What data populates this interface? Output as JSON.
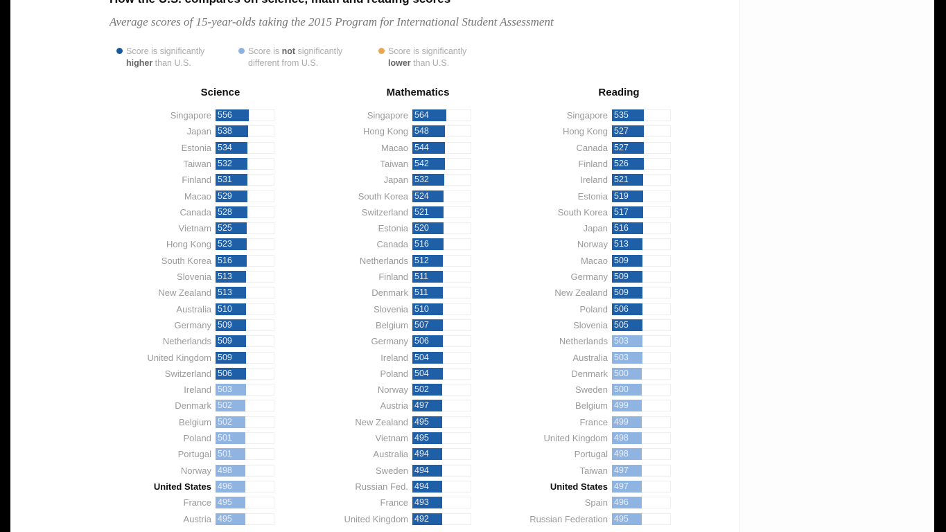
{
  "title": "How the U.S. compares on science, math and reading scores",
  "subtitle": "Average scores of 15-year-olds taking the 2015 Program for International Student Assessment",
  "legend": [
    {
      "line1_a": "Score is significantly",
      "bold": "higher",
      "line2_b": " than U.S.",
      "color": "#1a5a9c"
    },
    {
      "line1_a": "Score is ",
      "bold": "not",
      "line1_b": " significantly",
      "line2": "different from U.S.",
      "color": "#8db2e0"
    },
    {
      "line1_a": "Score is significantly",
      "bold": "lower",
      "line2_b": " than U.S.",
      "color": "#e8a552"
    }
  ],
  "colors": {
    "higher": "#1f5fa8",
    "not_different": "#8fb4e2",
    "lower": "#e8a552"
  },
  "chart_data": [
    {
      "type": "bar",
      "title": "Science",
      "rows": [
        [
          "Singapore",
          556,
          "higher"
        ],
        [
          "Japan",
          538,
          "higher"
        ],
        [
          "Estonia",
          534,
          "higher"
        ],
        [
          "Taiwan",
          532,
          "higher"
        ],
        [
          "Finland",
          531,
          "higher"
        ],
        [
          "Macao",
          529,
          "higher"
        ],
        [
          "Canada",
          528,
          "higher"
        ],
        [
          "Vietnam",
          525,
          "higher"
        ],
        [
          "Hong Kong",
          523,
          "higher"
        ],
        [
          "South Korea",
          516,
          "higher"
        ],
        [
          "Slovenia",
          513,
          "higher"
        ],
        [
          "New Zealand",
          513,
          "higher"
        ],
        [
          "Australia",
          510,
          "higher"
        ],
        [
          "Germany",
          509,
          "higher"
        ],
        [
          "Netherlands",
          509,
          "higher"
        ],
        [
          "United Kingdom",
          509,
          "higher"
        ],
        [
          "Switzerland",
          506,
          "higher"
        ],
        [
          "Ireland",
          503,
          "not_different"
        ],
        [
          "Denmark",
          502,
          "not_different"
        ],
        [
          "Belgium",
          502,
          "not_different"
        ],
        [
          "Poland",
          501,
          "not_different"
        ],
        [
          "Portugal",
          501,
          "not_different"
        ],
        [
          "Norway",
          498,
          "not_different"
        ],
        [
          "United States",
          496,
          "us"
        ],
        [
          "France",
          495,
          "not_different"
        ],
        [
          "Austria",
          495,
          "not_different"
        ]
      ]
    },
    {
      "type": "bar",
      "title": "Mathematics",
      "rows": [
        [
          "Singapore",
          564,
          "higher"
        ],
        [
          "Hong Kong",
          548,
          "higher"
        ],
        [
          "Macao",
          544,
          "higher"
        ],
        [
          "Taiwan",
          542,
          "higher"
        ],
        [
          "Japan",
          532,
          "higher"
        ],
        [
          "South Korea",
          524,
          "higher"
        ],
        [
          "Switzerland",
          521,
          "higher"
        ],
        [
          "Estonia",
          520,
          "higher"
        ],
        [
          "Canada",
          516,
          "higher"
        ],
        [
          "Netherlands",
          512,
          "higher"
        ],
        [
          "Finland",
          511,
          "higher"
        ],
        [
          "Denmark",
          511,
          "higher"
        ],
        [
          "Slovenia",
          510,
          "higher"
        ],
        [
          "Belgium",
          507,
          "higher"
        ],
        [
          "Germany",
          506,
          "higher"
        ],
        [
          "Ireland",
          504,
          "higher"
        ],
        [
          "Poland",
          504,
          "higher"
        ],
        [
          "Norway",
          502,
          "higher"
        ],
        [
          "Austria",
          497,
          "higher"
        ],
        [
          "New Zealand",
          495,
          "higher"
        ],
        [
          "Vietnam",
          495,
          "higher"
        ],
        [
          "Australia",
          494,
          "higher"
        ],
        [
          "Sweden",
          494,
          "higher"
        ],
        [
          "Russian Fed.",
          494,
          "higher"
        ],
        [
          "France",
          493,
          "higher"
        ],
        [
          "United Kingdom",
          492,
          "higher"
        ]
      ]
    },
    {
      "type": "bar",
      "title": "Reading",
      "rows": [
        [
          "Singapore",
          535,
          "higher"
        ],
        [
          "Hong Kong",
          527,
          "higher"
        ],
        [
          "Canada",
          527,
          "higher"
        ],
        [
          "Finland",
          526,
          "higher"
        ],
        [
          "Ireland",
          521,
          "higher"
        ],
        [
          "Estonia",
          519,
          "higher"
        ],
        [
          "South Korea",
          517,
          "higher"
        ],
        [
          "Japan",
          516,
          "higher"
        ],
        [
          "Norway",
          513,
          "higher"
        ],
        [
          "Macao",
          509,
          "higher"
        ],
        [
          "Germany",
          509,
          "higher"
        ],
        [
          "New Zealand",
          509,
          "higher"
        ],
        [
          "Poland",
          506,
          "higher"
        ],
        [
          "Slovenia",
          505,
          "higher"
        ],
        [
          "Netherlands",
          503,
          "not_different"
        ],
        [
          "Australia",
          503,
          "not_different"
        ],
        [
          "Denmark",
          500,
          "not_different"
        ],
        [
          "Sweden",
          500,
          "not_different"
        ],
        [
          "Belgium",
          499,
          "not_different"
        ],
        [
          "France",
          499,
          "not_different"
        ],
        [
          "United Kingdom",
          498,
          "not_different"
        ],
        [
          "Portugal",
          498,
          "not_different"
        ],
        [
          "Taiwan",
          497,
          "not_different"
        ],
        [
          "United States",
          497,
          "us"
        ],
        [
          "Spain",
          496,
          "not_different"
        ],
        [
          "Russian Federation",
          495,
          "not_different"
        ]
      ]
    }
  ]
}
